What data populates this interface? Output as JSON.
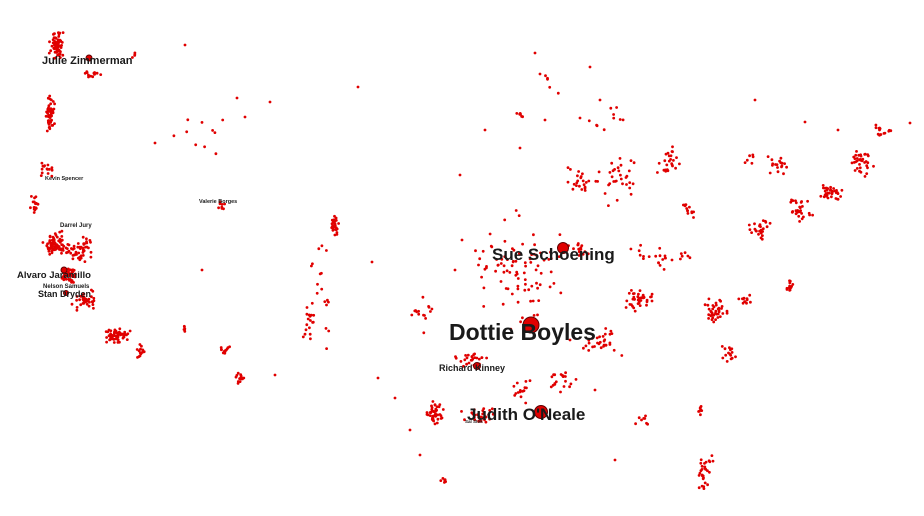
{
  "map": {
    "dot_color": "#e00000",
    "label_color": "#1a1a1a",
    "labels": [
      {
        "id": "julie-zimmerman",
        "text": "Julie Zimmerman"
      },
      {
        "id": "kevin-spencer",
        "text": "Kevin Spencer"
      },
      {
        "id": "valerie-borges",
        "text": "Valerie Borges"
      },
      {
        "id": "darrel-jury",
        "text": "Darrel Jury"
      },
      {
        "id": "alvaro-jaramillo",
        "text": "Alvaro Jaramillo"
      },
      {
        "id": "nelson-samuels",
        "text": "Nelson Samuels"
      },
      {
        "id": "stan-dryden",
        "text": "Stan Dryden"
      },
      {
        "id": "sue-schoening",
        "text": "Sue Schoening"
      },
      {
        "id": "dottie-boyles",
        "text": "Dottie Boyles"
      },
      {
        "id": "richard-kinney",
        "text": "Richard Kinney"
      },
      {
        "id": "judith-oneale",
        "text": "Judith O'Neale"
      },
      {
        "id": "small-tag",
        "text": "Sal Stok"
      }
    ]
  }
}
